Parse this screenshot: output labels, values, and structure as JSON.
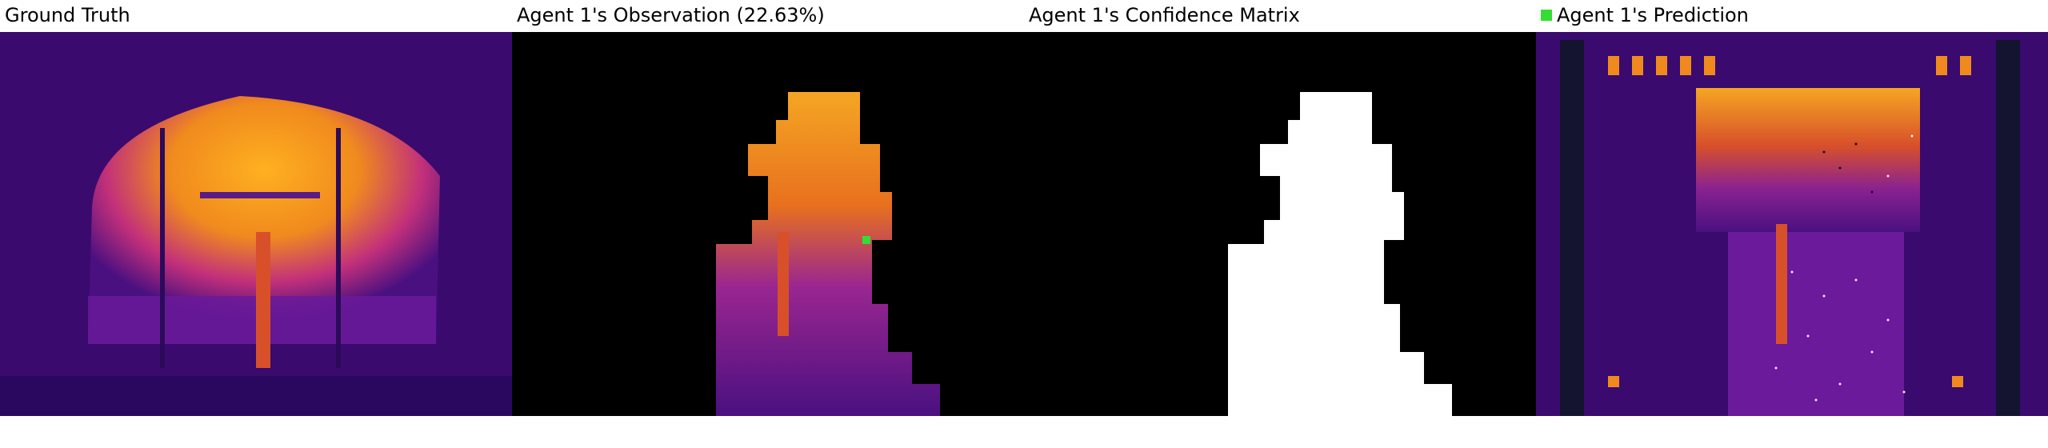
{
  "panels": {
    "ground_truth": {
      "title": "Ground Truth"
    },
    "observation": {
      "title": "Agent 1's Observation (22.63%)"
    },
    "confidence": {
      "title": "Agent 1's Confidence Matrix"
    },
    "prediction": {
      "title": "Agent 1's Prediction"
    }
  },
  "legend": {
    "swatch_color": "#33dd33"
  },
  "colors": {
    "background": "#ffffff",
    "colormap_dark": "#3a0a6e",
    "colormap_mid": "#c2307a",
    "colormap_bright": "#f5a623",
    "mask_on": "#ffffff",
    "mask_off": "#000000"
  }
}
